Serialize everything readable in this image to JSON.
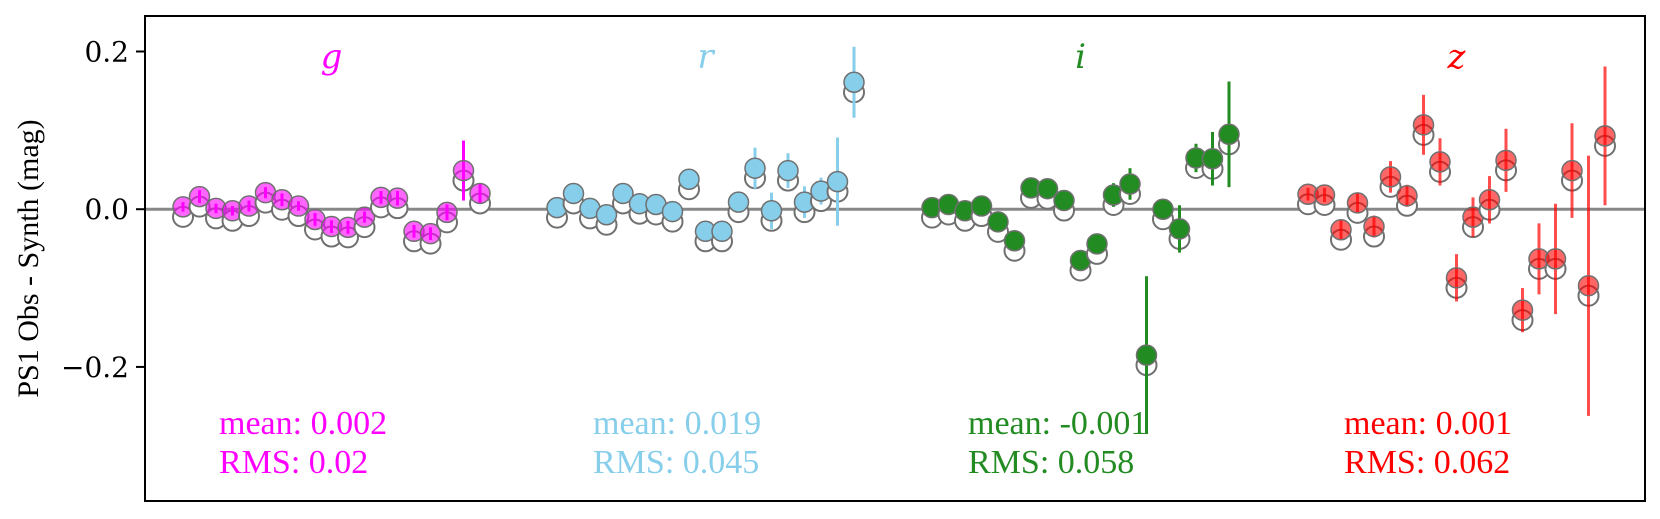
{
  "chart_data": {
    "type": "scatter",
    "ylabel": "PS1 Obs - Synth (mag)",
    "xlabel": "",
    "ylim": [
      -0.37,
      0.245
    ],
    "yticks": [
      {
        "value": 0.2,
        "label": "0.2"
      },
      {
        "value": 0.0,
        "label": "0.0"
      },
      {
        "value": -0.2,
        "label": "−0.2"
      }
    ],
    "reference_line": 0.0,
    "grid": false,
    "groups": [
      {
        "name": "g",
        "color": "#ff00ff",
        "mean_text": "mean: 0.002",
        "rms_text": "RMS: 0.02",
        "points": [
          {
            "obs": 0.003,
            "synth": -0.006,
            "err": 0.006
          },
          {
            "obs": 0.016,
            "synth": 0.007,
            "err": 0.008
          },
          {
            "obs": 0.001,
            "synth": -0.008,
            "err": 0.006
          },
          {
            "obs": -0.002,
            "synth": -0.011,
            "err": 0.006
          },
          {
            "obs": 0.004,
            "synth": -0.005,
            "err": 0.007
          },
          {
            "obs": 0.021,
            "synth": 0.012,
            "err": 0.007
          },
          {
            "obs": 0.012,
            "synth": 0.003,
            "err": 0.008
          },
          {
            "obs": 0.004,
            "synth": -0.005,
            "err": 0.006
          },
          {
            "obs": -0.013,
            "synth": -0.022,
            "err": 0.008
          },
          {
            "obs": -0.022,
            "synth": -0.031,
            "err": 0.008
          },
          {
            "obs": -0.023,
            "synth": -0.032,
            "err": 0.008
          },
          {
            "obs": -0.01,
            "synth": -0.019,
            "err": 0.007
          },
          {
            "obs": 0.015,
            "synth": 0.006,
            "err": 0.008
          },
          {
            "obs": 0.014,
            "synth": 0.005,
            "err": 0.009
          },
          {
            "obs": -0.028,
            "synth": -0.037,
            "err": 0.008
          },
          {
            "obs": -0.031,
            "synth": -0.04,
            "err": 0.008
          },
          {
            "obs": -0.004,
            "synth": -0.013,
            "err": 0.01
          },
          {
            "obs": 0.049,
            "synth": 0.04,
            "err": 0.038
          },
          {
            "obs": 0.02,
            "synth": 0.011,
            "err": 0.012
          }
        ]
      },
      {
        "name": "r",
        "color": "#87ceeb",
        "mean_text": "mean: 0.019",
        "rms_text": "RMS: 0.045",
        "points": [
          {
            "obs": 0.002,
            "synth": -0.007,
            "err": 0.006
          },
          {
            "obs": 0.02,
            "synth": 0.011,
            "err": 0.007
          },
          {
            "obs": 0.001,
            "synth": -0.008,
            "err": 0.006
          },
          {
            "obs": -0.007,
            "synth": -0.016,
            "err": 0.007
          },
          {
            "obs": 0.02,
            "synth": 0.011,
            "err": 0.007
          },
          {
            "obs": 0.007,
            "synth": -0.002,
            "err": 0.006
          },
          {
            "obs": 0.006,
            "synth": -0.003,
            "err": 0.007
          },
          {
            "obs": -0.003,
            "synth": -0.012,
            "err": 0.007
          },
          {
            "obs": 0.038,
            "synth": 0.029,
            "err": 0.01
          },
          {
            "obs": -0.028,
            "synth": -0.037,
            "err": 0.008
          },
          {
            "obs": -0.028,
            "synth": -0.037,
            "err": 0.008
          },
          {
            "obs": 0.009,
            "synth": 0.0,
            "err": 0.012
          },
          {
            "obs": 0.052,
            "synth": 0.043,
            "err": 0.026
          },
          {
            "obs": -0.002,
            "synth": -0.011,
            "err": 0.023
          },
          {
            "obs": 0.049,
            "synth": 0.04,
            "err": 0.022
          },
          {
            "obs": 0.009,
            "synth": 0.0,
            "err": 0.02
          },
          {
            "obs": 0.023,
            "synth": 0.014,
            "err": 0.017
          },
          {
            "obs": 0.035,
            "synth": 0.026,
            "err": 0.056
          },
          {
            "obs": 0.161,
            "synth": 0.152,
            "err": 0.045
          }
        ]
      },
      {
        "name": "i",
        "color": "#228b22",
        "mean_text": "mean: -0.001",
        "rms_text": "RMS: 0.058",
        "points": [
          {
            "obs": 0.002,
            "synth": -0.007,
            "err": 0.008
          },
          {
            "obs": 0.006,
            "synth": -0.003,
            "err": 0.008
          },
          {
            "obs": -0.002,
            "synth": -0.011,
            "err": 0.008
          },
          {
            "obs": 0.004,
            "synth": -0.005,
            "err": 0.007
          },
          {
            "obs": -0.016,
            "synth": -0.025,
            "err": 0.008
          },
          {
            "obs": -0.04,
            "synth": -0.049,
            "err": 0.008
          },
          {
            "obs": 0.027,
            "synth": 0.018,
            "err": 0.009
          },
          {
            "obs": 0.026,
            "synth": 0.017,
            "err": 0.009
          },
          {
            "obs": 0.011,
            "synth": 0.002,
            "err": 0.01
          },
          {
            "obs": -0.065,
            "synth": -0.074,
            "err": 0.01
          },
          {
            "obs": -0.044,
            "synth": -0.053,
            "err": 0.012
          },
          {
            "obs": 0.018,
            "synth": 0.009,
            "err": 0.015
          },
          {
            "obs": 0.032,
            "synth": 0.023,
            "err": 0.02
          },
          {
            "obs": -0.185,
            "synth": -0.194,
            "err": 0.1
          },
          {
            "obs": 0.0,
            "synth": -0.009,
            "err": 0.01
          },
          {
            "obs": -0.025,
            "synth": -0.034,
            "err": 0.03
          },
          {
            "obs": 0.065,
            "synth": 0.056,
            "err": 0.018
          },
          {
            "obs": 0.064,
            "synth": 0.055,
            "err": 0.034
          },
          {
            "obs": 0.095,
            "synth": 0.086,
            "err": 0.067
          }
        ]
      },
      {
        "name": "z",
        "color": "#ff0000",
        "mean_text": "mean: 0.001",
        "rms_text": "RMS: 0.062",
        "points": [
          {
            "obs": 0.019,
            "synth": 0.01,
            "err": 0.008
          },
          {
            "obs": 0.018,
            "synth": 0.009,
            "err": 0.009
          },
          {
            "obs": -0.026,
            "synth": -0.035,
            "err": 0.012
          },
          {
            "obs": 0.008,
            "synth": -0.001,
            "err": 0.012
          },
          {
            "obs": -0.022,
            "synth": -0.031,
            "err": 0.014
          },
          {
            "obs": 0.041,
            "synth": 0.032,
            "err": 0.02
          },
          {
            "obs": 0.017,
            "synth": 0.008,
            "err": 0.014
          },
          {
            "obs": 0.107,
            "synth": 0.098,
            "err": 0.038
          },
          {
            "obs": 0.06,
            "synth": 0.051,
            "err": 0.03
          },
          {
            "obs": -0.087,
            "synth": -0.096,
            "err": 0.03
          },
          {
            "obs": -0.01,
            "synth": -0.019,
            "err": 0.025
          },
          {
            "obs": 0.012,
            "synth": 0.003,
            "err": 0.03
          },
          {
            "obs": 0.062,
            "synth": 0.053,
            "err": 0.04
          },
          {
            "obs": -0.128,
            "synth": -0.137,
            "err": 0.028
          },
          {
            "obs": -0.063,
            "synth": -0.072,
            "err": 0.045
          },
          {
            "obs": -0.063,
            "synth": -0.072,
            "err": 0.07
          },
          {
            "obs": 0.049,
            "synth": 0.04,
            "err": 0.06
          },
          {
            "obs": -0.097,
            "synth": -0.106,
            "err": 0.165
          },
          {
            "obs": 0.093,
            "synth": 0.084,
            "err": 0.088
          }
        ]
      }
    ]
  }
}
